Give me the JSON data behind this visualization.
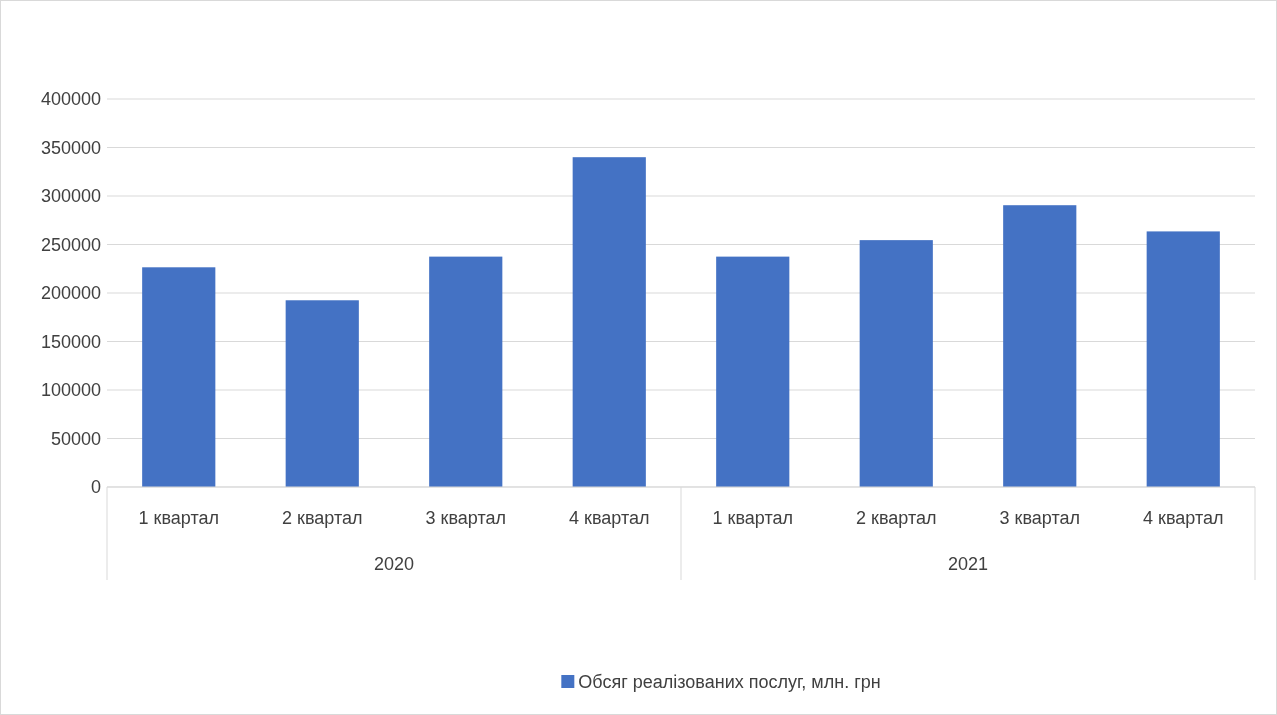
{
  "chart_data": {
    "type": "bar",
    "categories": [
      "1 квартал",
      "2 квартал",
      "3 квартал",
      "4 квартал",
      "1 квартал",
      "2 квартал",
      "3 квартал",
      "4 квартал"
    ],
    "series": [
      {
        "name": "Обсяг реалізованих послуг, млн. грн",
        "color": "#4472c4",
        "values": [
          226500,
          192500,
          237500,
          340000,
          237500,
          254500,
          290500,
          263500
        ]
      }
    ],
    "ylim": [
      0,
      400000
    ],
    "yticks": [
      0,
      50000,
      100000,
      150000,
      200000,
      250000,
      300000,
      350000,
      400000
    ],
    "grid": "y",
    "legend": "bottom",
    "annotations": [
      "2020",
      "2021"
    ]
  }
}
